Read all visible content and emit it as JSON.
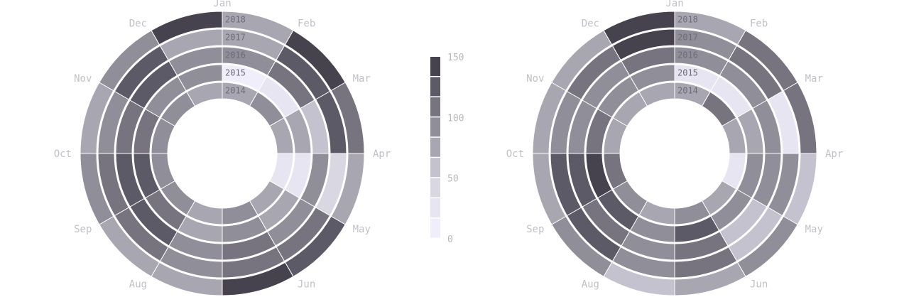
{
  "chart_data": {
    "type": "heatmap",
    "layout": "radial",
    "months": [
      "Jan",
      "Feb",
      "Mar",
      "Apr",
      "May",
      "Jun",
      "Jul",
      "Aug",
      "Sep",
      "Oct",
      "Nov",
      "Dec"
    ],
    "years": [
      "2014",
      "2015",
      "2016",
      "2017",
      "2018"
    ],
    "colorscale": [
      "#46434f",
      "#5d5a68",
      "#77747f",
      "#908e99",
      "#a8a6b1",
      "#c4c2ce",
      "#d8d7e2",
      "#e6e5f1",
      "#efeefa"
    ],
    "legend": {
      "min": 0,
      "max": 150,
      "ticks": [
        "150",
        "100",
        "50",
        "0"
      ]
    },
    "charts": [
      {
        "name": "left",
        "values": {
          "2014": [
            75,
            95,
            68,
            18,
            68,
            85,
            75,
            95,
            100,
            85,
            90,
            70
          ],
          "2015": [
            10,
            30,
            75,
            30,
            70,
            85,
            70,
            105,
            120,
            115,
            100,
            90
          ],
          "2016": [
            85,
            105,
            55,
            85,
            85,
            105,
            95,
            120,
            130,
            105,
            120,
            90
          ],
          "2017": [
            75,
            130,
            130,
            40,
            105,
            115,
            90,
            110,
            115,
            100,
            120,
            70
          ],
          "2018": [
            75,
            135,
            110,
            70,
            120,
            145,
            70,
            80,
            85,
            80,
            90,
            135
          ]
        }
      },
      {
        "name": "right",
        "values": {
          "2014": [
            70,
            110,
            75,
            18,
            75,
            85,
            70,
            85,
            110,
            70,
            70,
            70
          ],
          "2015": [
            18,
            25,
            70,
            90,
            90,
            120,
            90,
            120,
            135,
            105,
            100,
            100
          ],
          "2016": [
            95,
            100,
            100,
            95,
            55,
            105,
            85,
            105,
            125,
            100,
            100,
            105
          ],
          "2017": [
            85,
            115,
            20,
            85,
            65,
            105,
            90,
            120,
            125,
            100,
            110,
            135
          ],
          "2018": [
            75,
            115,
            110,
            55,
            85,
            75,
            65,
            90,
            80,
            70,
            75,
            140
          ]
        }
      }
    ]
  }
}
